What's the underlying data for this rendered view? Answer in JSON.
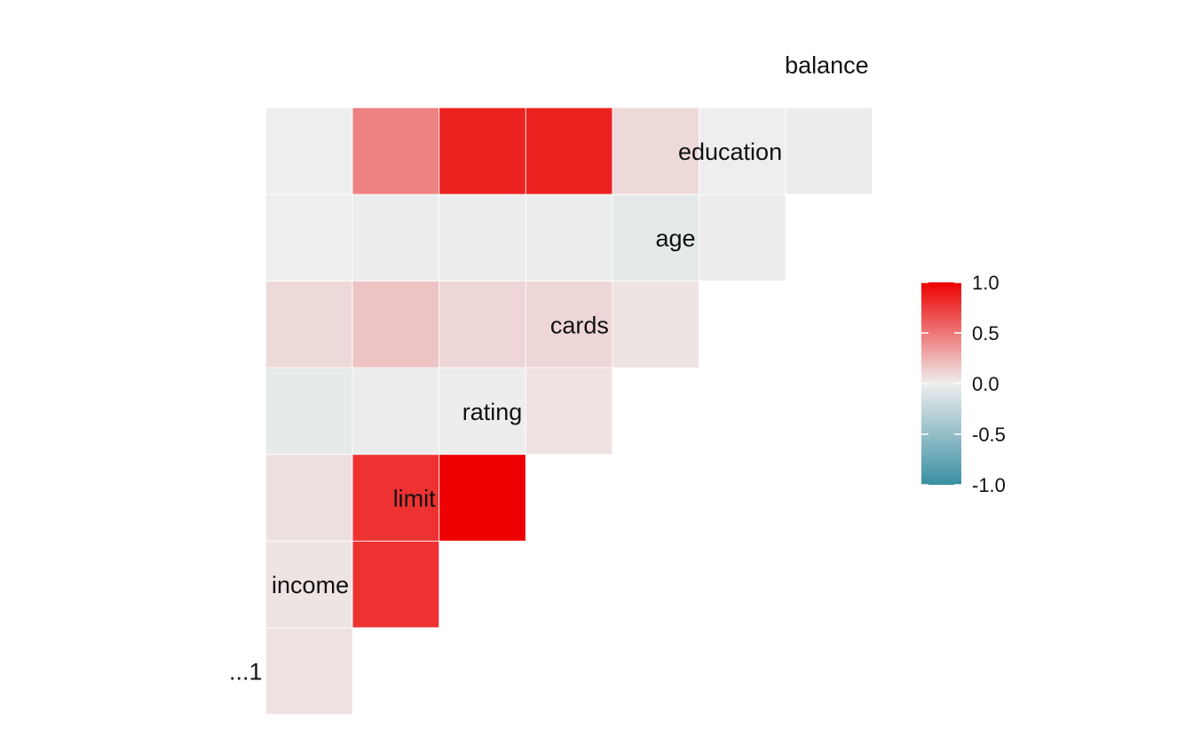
{
  "chart_data": {
    "type": "heatmap",
    "subtype": "lower-triangular correlation matrix",
    "variables": [
      "...1",
      "income",
      "limit",
      "rating",
      "cards",
      "age",
      "education",
      "balance"
    ],
    "cells": [
      {
        "row": "income",
        "col": "...1",
        "value": 0.05
      },
      {
        "row": "limit",
        "col": "...1",
        "value": 0.04
      },
      {
        "row": "limit",
        "col": "income",
        "value": 0.79
      },
      {
        "row": "rating",
        "col": "...1",
        "value": 0.06
      },
      {
        "row": "rating",
        "col": "income",
        "value": 0.79
      },
      {
        "row": "rating",
        "col": "limit",
        "value": 1.0
      },
      {
        "row": "cards",
        "col": "...1",
        "value": -0.04
      },
      {
        "row": "cards",
        "col": "income",
        "value": -0.02
      },
      {
        "row": "cards",
        "col": "limit",
        "value": 0.01
      },
      {
        "row": "cards",
        "col": "rating",
        "value": 0.05
      },
      {
        "row": "age",
        "col": "...1",
        "value": 0.09
      },
      {
        "row": "age",
        "col": "income",
        "value": 0.18
      },
      {
        "row": "age",
        "col": "limit",
        "value": 0.1
      },
      {
        "row": "age",
        "col": "rating",
        "value": 0.1
      },
      {
        "row": "age",
        "col": "cards",
        "value": 0.04
      },
      {
        "row": "education",
        "col": "...1",
        "value": 0.0
      },
      {
        "row": "education",
        "col": "income",
        "value": -0.01
      },
      {
        "row": "education",
        "col": "limit",
        "value": -0.02
      },
      {
        "row": "education",
        "col": "rating",
        "value": -0.01
      },
      {
        "row": "education",
        "col": "cards",
        "value": -0.05
      },
      {
        "row": "education",
        "col": "age",
        "value": 0.01
      },
      {
        "row": "balance",
        "col": "...1",
        "value": 0.0
      },
      {
        "row": "balance",
        "col": "income",
        "value": 0.46
      },
      {
        "row": "balance",
        "col": "limit",
        "value": 0.86
      },
      {
        "row": "balance",
        "col": "rating",
        "value": 0.86
      },
      {
        "row": "balance",
        "col": "cards",
        "value": 0.09
      },
      {
        "row": "balance",
        "col": "age",
        "value": 0.0
      },
      {
        "row": "balance",
        "col": "education",
        "value": -0.01
      }
    ],
    "color_scale": {
      "low": "#3A8FA3",
      "mid": "#EEEEEE",
      "high": "#EE0000",
      "limits": [
        -1,
        1
      ]
    },
    "legend": {
      "position": "right",
      "ticks": [
        "1.0",
        "0.5",
        "0.0",
        "-0.5",
        "-1.0"
      ]
    },
    "title": "",
    "xlabel": "",
    "ylabel": ""
  }
}
